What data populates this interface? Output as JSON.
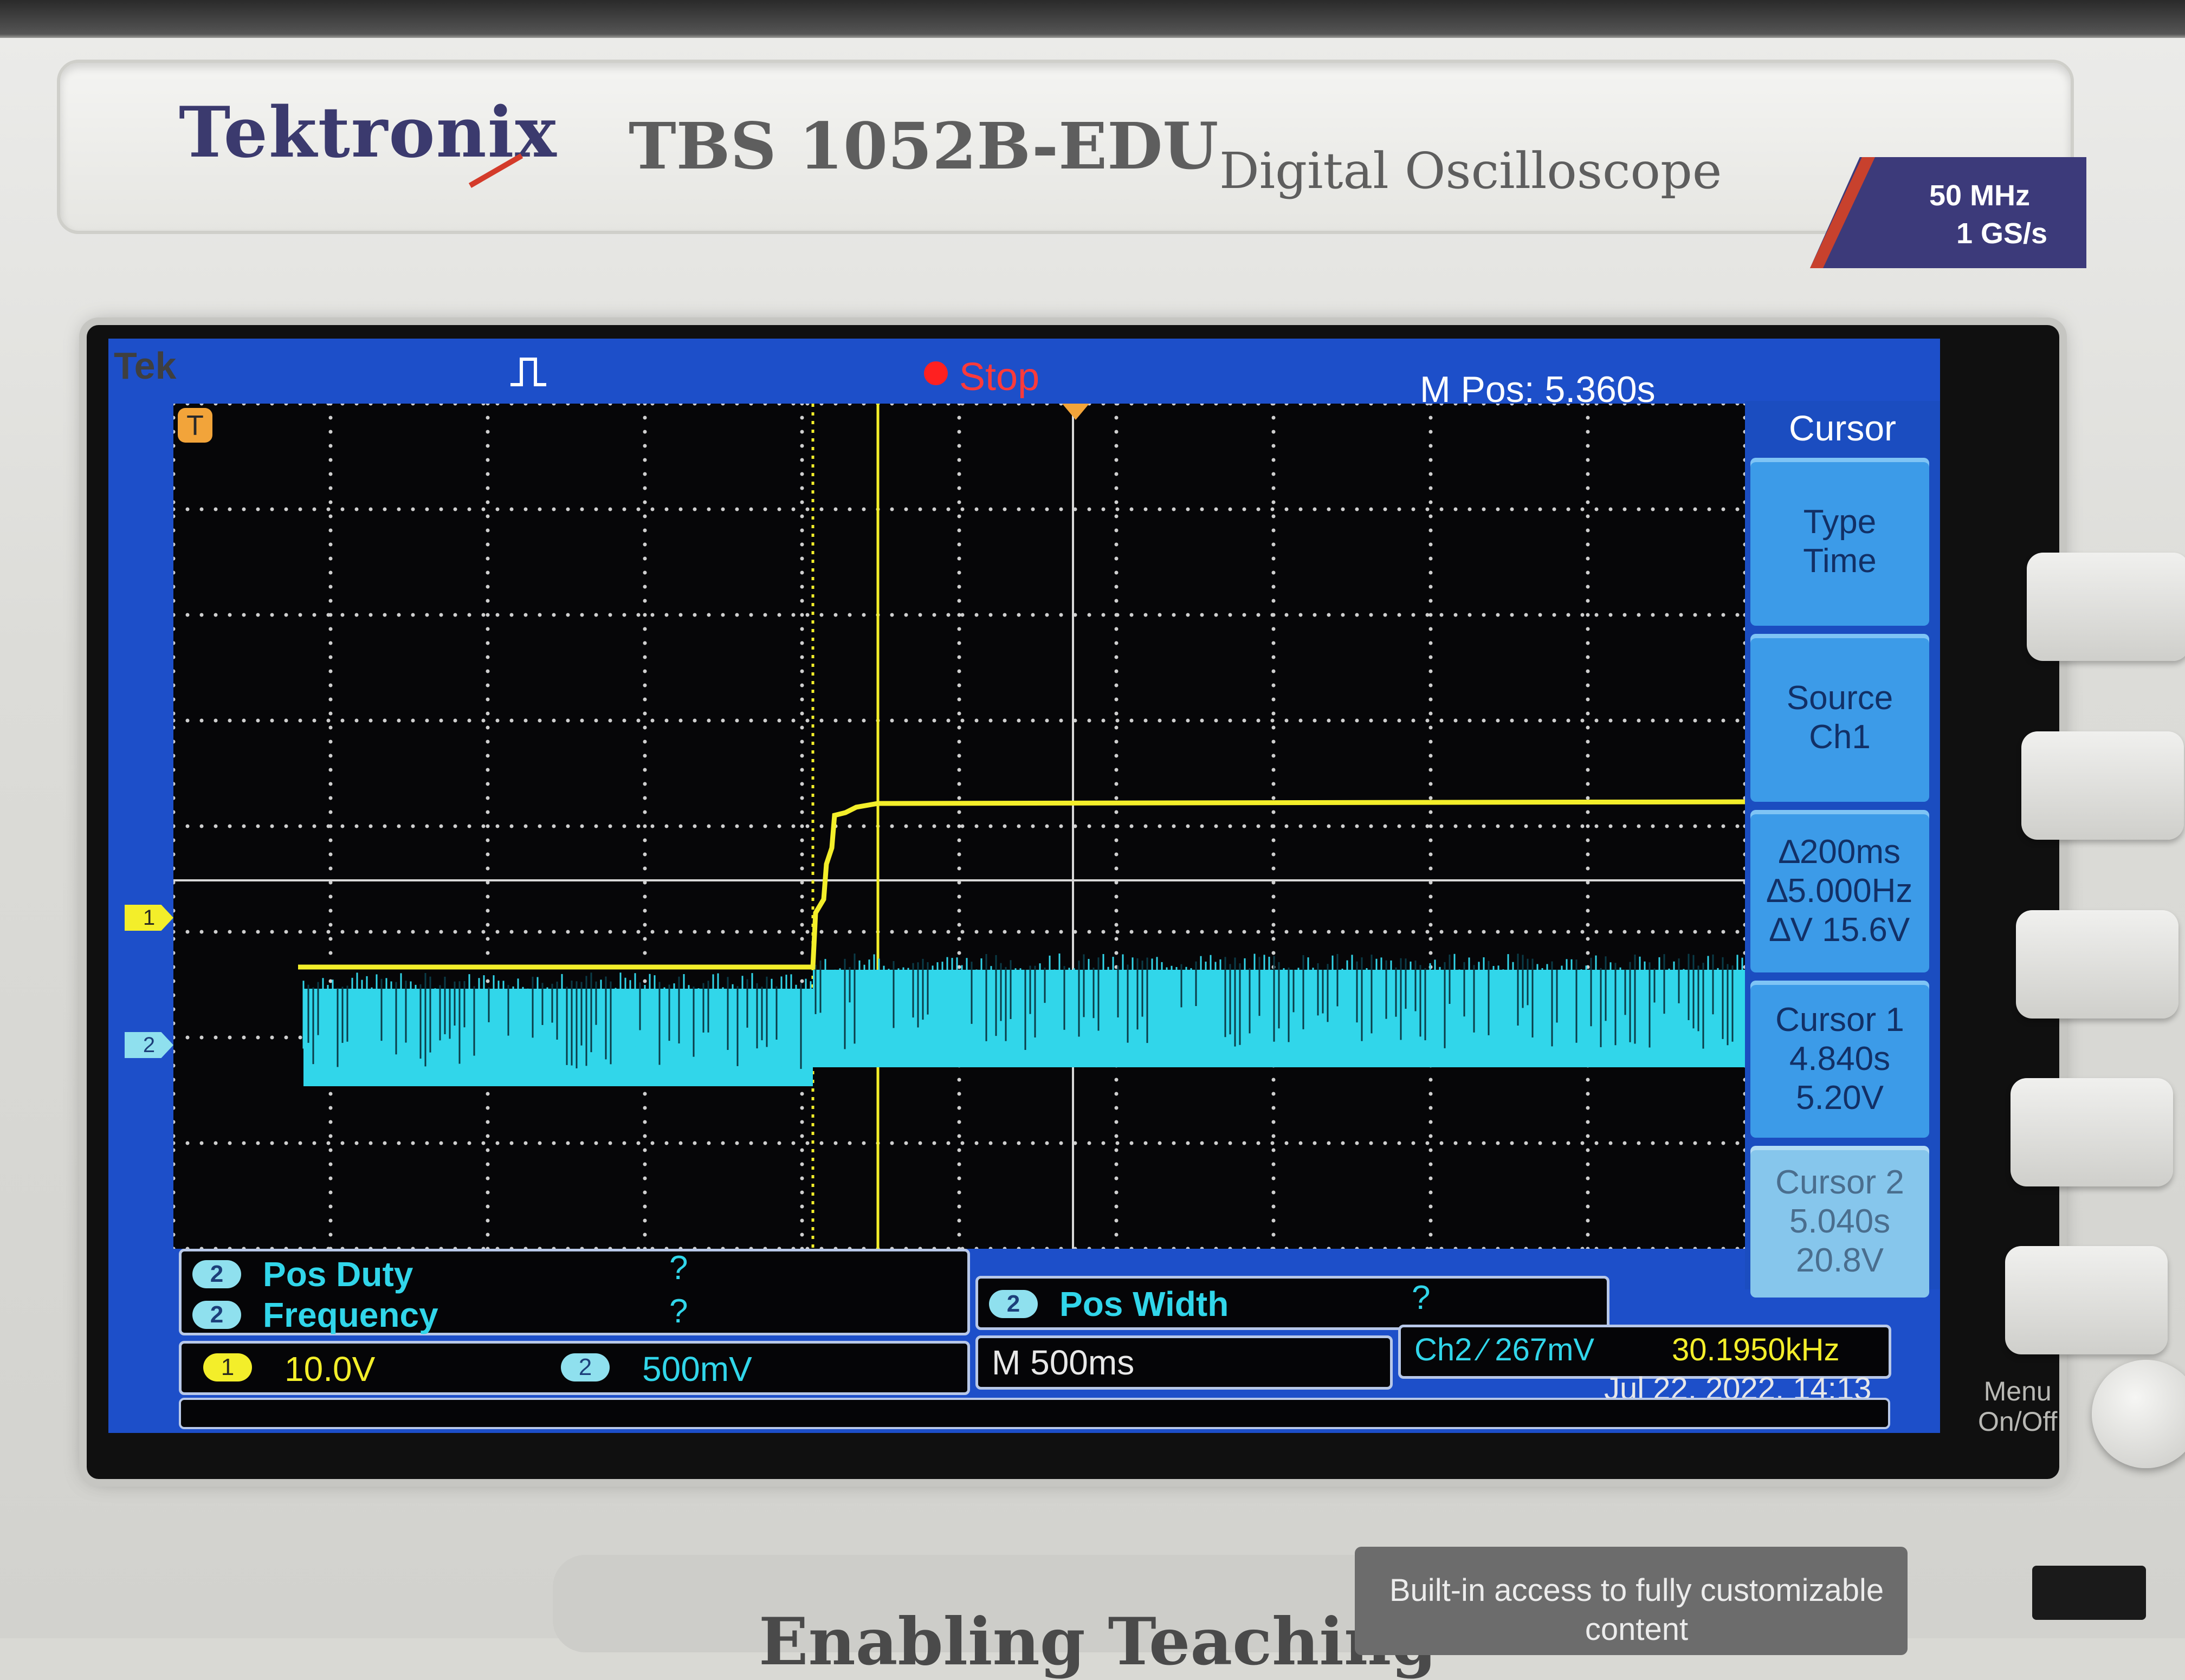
{
  "instrument": {
    "brand": "Tektronix",
    "model": "TBS 1052B-EDU",
    "description": "Digital Oscilloscope",
    "bandwidth": "50 MHz",
    "sample_rate": "1 GS/s",
    "menu_onoff": "Menu\nOn/Off",
    "bottom_tag": "Built-in access to fully customizable content",
    "bottom_slogan": "Enabling Teaching"
  },
  "screen": {
    "tek_label": "Tek",
    "run_state": "Stop",
    "m_pos": "M Pos: 5.360s",
    "trigger_marker": "T",
    "ch1_marker": "1",
    "ch2_marker": "2"
  },
  "cursor_menu": {
    "title": "Cursor",
    "buttons": [
      {
        "line1": "Type",
        "line2": "Time",
        "line3": ""
      },
      {
        "line1": "Source",
        "line2": "Ch1",
        "line3": ""
      },
      {
        "line1": "∆200ms",
        "line2": "∆5.000Hz",
        "line3": "∆V 15.6V"
      },
      {
        "line1": "Cursor 1",
        "line2": "4.840s",
        "line3": "5.20V"
      },
      {
        "line1": "Cursor 2",
        "line2": "5.040s",
        "line3": "20.8V"
      }
    ]
  },
  "measurements": {
    "pos_duty": {
      "channel": "2",
      "label": "Pos Duty",
      "value": "?"
    },
    "frequency": {
      "channel": "2",
      "label": "Frequency",
      "value": "?"
    },
    "pos_width": {
      "channel": "2",
      "label": "Pos Width",
      "value": "?"
    }
  },
  "status": {
    "ch1": {
      "badge": "1",
      "scale": "10.0V"
    },
    "ch2": {
      "badge": "2",
      "scale": "500mV"
    },
    "timebase": "M 500ms",
    "trigger": "Ch2 ⁄ 267mV",
    "trigger_freq": "30.1950kHz",
    "datetime": "Jul 22, 2022, 14:13"
  },
  "colors": {
    "ch1": "#f3ee2a",
    "ch2": "#31d6ea",
    "screen_bg": "#060608",
    "frame_blue": "#1d4fc9"
  }
}
